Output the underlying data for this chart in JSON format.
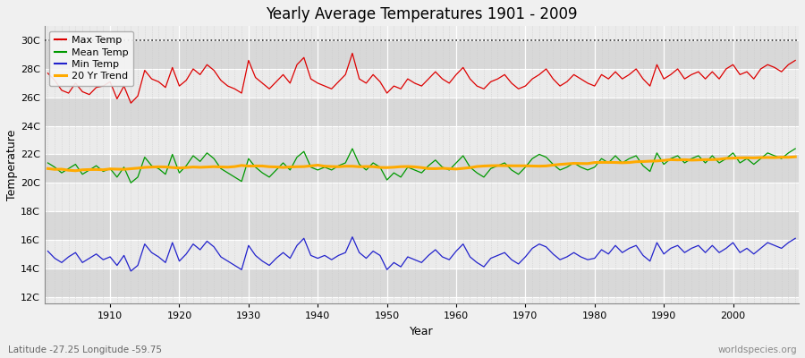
{
  "title": "Yearly Average Temperatures 1901 - 2009",
  "xlabel": "Year",
  "ylabel": "Temperature",
  "lat_lon_label": "Latitude -27.25 Longitude -59.75",
  "source_label": "worldspecies.org",
  "years_start": 1901,
  "years_end": 2009,
  "yticks": [
    12,
    14,
    16,
    18,
    20,
    22,
    24,
    26,
    28,
    30
  ],
  "ytick_labels": [
    "12C",
    "14C",
    "16C",
    "18C",
    "20C",
    "22C",
    "24C",
    "26C",
    "28C",
    "30C"
  ],
  "ylim": [
    11.5,
    31.0
  ],
  "xlim": [
    1901,
    2009
  ],
  "colors": {
    "max": "#dd0000",
    "mean": "#009900",
    "min": "#2222cc",
    "trend": "#ffaa00",
    "bg_light": "#ebebeb",
    "bg_dark": "#d8d8d8",
    "grid_major_v": "#ffffff",
    "grid_minor_v": "#cccccc",
    "grid_major_h": "#ffffff"
  },
  "legend_entries": [
    "Max Temp",
    "Mean Temp",
    "Min Temp",
    "20 Yr Trend"
  ],
  "dotted_line_y": 30,
  "max_temps": [
    27.7,
    27.2,
    26.5,
    26.3,
    27.0,
    26.4,
    26.2,
    26.7,
    26.8,
    27.1,
    25.9,
    26.8,
    25.6,
    26.1,
    27.9,
    27.3,
    27.1,
    26.7,
    28.1,
    26.8,
    27.2,
    28.0,
    27.6,
    28.3,
    27.9,
    27.2,
    26.8,
    26.6,
    26.3,
    28.6,
    27.4,
    27.0,
    26.6,
    27.1,
    27.6,
    27.0,
    28.3,
    28.8,
    27.3,
    27.0,
    26.8,
    26.6,
    27.1,
    27.6,
    29.1,
    27.3,
    27.0,
    27.6,
    27.1,
    26.3,
    26.8,
    26.6,
    27.3,
    27.0,
    26.8,
    27.3,
    27.8,
    27.3,
    27.0,
    27.6,
    28.1,
    27.3,
    26.8,
    26.6,
    27.1,
    27.3,
    27.6,
    27.0,
    26.6,
    26.8,
    27.3,
    27.6,
    28.0,
    27.3,
    26.8,
    27.1,
    27.6,
    27.3,
    27.0,
    26.8,
    27.6,
    27.3,
    27.8,
    27.3,
    27.6,
    28.0,
    27.3,
    26.8,
    28.3,
    27.3,
    27.6,
    28.0,
    27.3,
    27.6,
    27.8,
    27.3,
    27.8,
    27.3,
    28.0,
    28.3,
    27.6,
    27.8,
    27.3,
    28.0,
    28.3,
    28.1,
    27.8,
    28.3,
    28.6
  ],
  "mean_temps": [
    21.4,
    21.1,
    20.7,
    21.0,
    21.3,
    20.6,
    20.9,
    21.2,
    20.8,
    21.0,
    20.4,
    21.1,
    20.0,
    20.4,
    21.8,
    21.2,
    21.0,
    20.6,
    22.0,
    20.7,
    21.2,
    21.9,
    21.5,
    22.1,
    21.7,
    21.0,
    20.7,
    20.4,
    20.1,
    21.7,
    21.1,
    20.7,
    20.4,
    20.9,
    21.4,
    20.9,
    21.8,
    22.2,
    21.1,
    20.9,
    21.1,
    20.9,
    21.2,
    21.4,
    22.4,
    21.3,
    20.9,
    21.4,
    21.1,
    20.2,
    20.7,
    20.4,
    21.1,
    20.9,
    20.7,
    21.2,
    21.6,
    21.1,
    20.9,
    21.4,
    21.9,
    21.1,
    20.7,
    20.4,
    21.0,
    21.2,
    21.4,
    20.9,
    20.6,
    21.1,
    21.7,
    22.0,
    21.8,
    21.3,
    20.9,
    21.1,
    21.4,
    21.1,
    20.9,
    21.1,
    21.7,
    21.4,
    21.9,
    21.4,
    21.7,
    21.9,
    21.2,
    20.8,
    22.1,
    21.3,
    21.7,
    21.9,
    21.4,
    21.7,
    21.9,
    21.4,
    21.9,
    21.4,
    21.7,
    22.1,
    21.4,
    21.7,
    21.3,
    21.7,
    22.1,
    21.9,
    21.7,
    22.1,
    22.4
  ],
  "min_temps": [
    15.2,
    14.7,
    14.4,
    14.8,
    15.1,
    14.4,
    14.7,
    15.0,
    14.6,
    14.8,
    14.2,
    14.9,
    13.8,
    14.2,
    15.7,
    15.1,
    14.8,
    14.4,
    15.8,
    14.5,
    15.0,
    15.7,
    15.3,
    15.9,
    15.5,
    14.8,
    14.5,
    14.2,
    13.9,
    15.6,
    14.9,
    14.5,
    14.2,
    14.7,
    15.1,
    14.7,
    15.6,
    16.1,
    14.9,
    14.7,
    14.9,
    14.6,
    14.9,
    15.1,
    16.2,
    15.1,
    14.7,
    15.2,
    14.9,
    13.9,
    14.4,
    14.1,
    14.8,
    14.6,
    14.4,
    14.9,
    15.3,
    14.8,
    14.6,
    15.2,
    15.7,
    14.8,
    14.4,
    14.1,
    14.7,
    14.9,
    15.1,
    14.6,
    14.3,
    14.8,
    15.4,
    15.7,
    15.5,
    15.0,
    14.6,
    14.8,
    15.1,
    14.8,
    14.6,
    14.7,
    15.3,
    15.0,
    15.6,
    15.1,
    15.4,
    15.6,
    14.9,
    14.5,
    15.8,
    15.0,
    15.4,
    15.6,
    15.1,
    15.4,
    15.6,
    15.1,
    15.6,
    15.1,
    15.4,
    15.8,
    15.1,
    15.4,
    15.0,
    15.4,
    15.8,
    15.6,
    15.4,
    15.8,
    16.1
  ]
}
